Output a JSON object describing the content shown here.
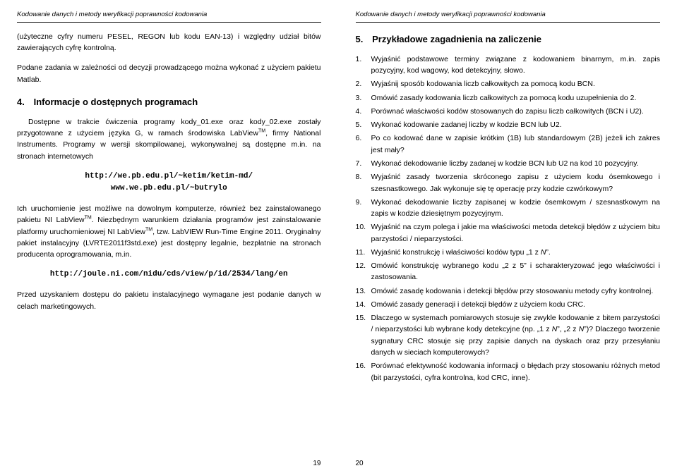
{
  "header": "Kodowanie danych i metody weryfikacji poprawności kodowania",
  "left": {
    "topPara": "(użyteczne cyfry numeru PESEL, REGON lub kodu EAN-13) i względny udział bitów zawierających cyfrę kontrolną.",
    "lead": "Podane zadania w zależności od decyzji prowadzącego można wykonać z użyciem pakietu Matlab.",
    "sec4title": "Informacje o dostępnych programach",
    "sec4num": "4.",
    "p1a": "Dostępne w trakcie ćwiczenia programy kody_01.exe oraz kody_02.exe zostały przygotowane z użyciem języka G, w ramach środowiska LabView",
    "p1b": ", firmy National Instruments. Programy w wersji skompilowanej, wykonywalnej są dostępne m.in. na stronach internetowych",
    "url1": "http://we.pb.edu.pl/~ketim/ketim-md/",
    "url2": "www.we.pb.edu.pl/~butrylo",
    "p2a": "Ich uruchomienie jest możliwe na dowolnym komputerze, również bez zainstalowanego pakietu NI LabView",
    "p2b": ". Niezbędnym warunkiem działania programów jest zainstalowanie platformy uruchomieniowej NI LabView",
    "p2c": ", tzw. LabVIEW Run-Time Engine 2011. Oryginalny pakiet instalacyjny (LVRTE2011f3std.exe) jest dostępny legalnie, bezpłatnie na stronach producenta oprogramowania, m.in.",
    "url3": "http://joule.ni.com/nidu/cds/view/p/id/2534/lang/en",
    "p3": "Przed uzyskaniem dostępu do pakietu instalacyjnego wymagane jest podanie danych w celach marketingowych.",
    "pagenum": "19"
  },
  "right": {
    "sec5title": "Przykładowe zagadnienia na zaliczenie",
    "sec5num": "5.",
    "items": [
      "Wyjaśnić podstawowe terminy związane z kodowaniem binarnym, m.in. zapis pozycyjny, kod wagowy, kod detekcyjny, słowo.",
      "Wyjaśnij sposób kodowania liczb całkowitych za pomocą kodu BCN.",
      "Omówić zasady kodowania liczb całkowitych za pomocą kodu uzupełnienia do 2.",
      "Porównać właściwości kodów stosowanych do zapisu liczb całkowitych (BCN i U2).",
      "Wykonać kodowanie zadanej liczby w kodzie BCN lub U2.",
      "Po co kodować dane w zapisie krótkim (1B) lub standardowym (2B) jeżeli ich zakres jest mały?",
      "Wykonać dekodowanie liczby zadanej w kodzie BCN lub U2 na kod 10 pozycyjny.",
      "Wyjaśnić zasady tworzenia skróconego zapisu z użyciem kodu ósemkowego i szesnastkowego. Jak wykonuje się tę operację przy kodzie czwórkowym?",
      "Wykonać dekodowanie liczby zapisanej w kodzie ósemkowym / szesnastkowym na zapis w kodzie dziesiętnym pozycyjnym.",
      "Wyjaśnić na czym polega i jakie ma właściwości metoda detekcji błędów z użyciem bitu parzystości / nieparzystości.",
      "Wyjaśnić konstrukcję i właściwości kodów typu „1 z N”.",
      "Omówić konstrukcję wybranego kodu „2 z 5” i scharakteryzować jego właściwości i zastosowania.",
      "Omówić zasadę kodowania i detekcji błędów przy stosowaniu metody cyfry kontrolnej.",
      "Omówić zasady generacji i detekcji błędów z użyciem kodu CRC.",
      "Dlaczego w systemach pomiarowych stosuje się zwykle kodowanie z bitem parzystości / nieparzystości lub wybrane kody detekcyjne (np. „1 z N”, „2 z N”)? Dlaczego tworzenie sygnatury CRC stosuje się przy zapisie danych na dyskach oraz przy przesyłaniu danych w sieciach komputerowych?",
      "Porównać efektywność kodowania informacji o błędach przy stosowaniu różnych metod (bit parzystości, cyfra kontrolna, kod CRC, inne)."
    ],
    "pagenum": "20"
  },
  "tm": "TM"
}
